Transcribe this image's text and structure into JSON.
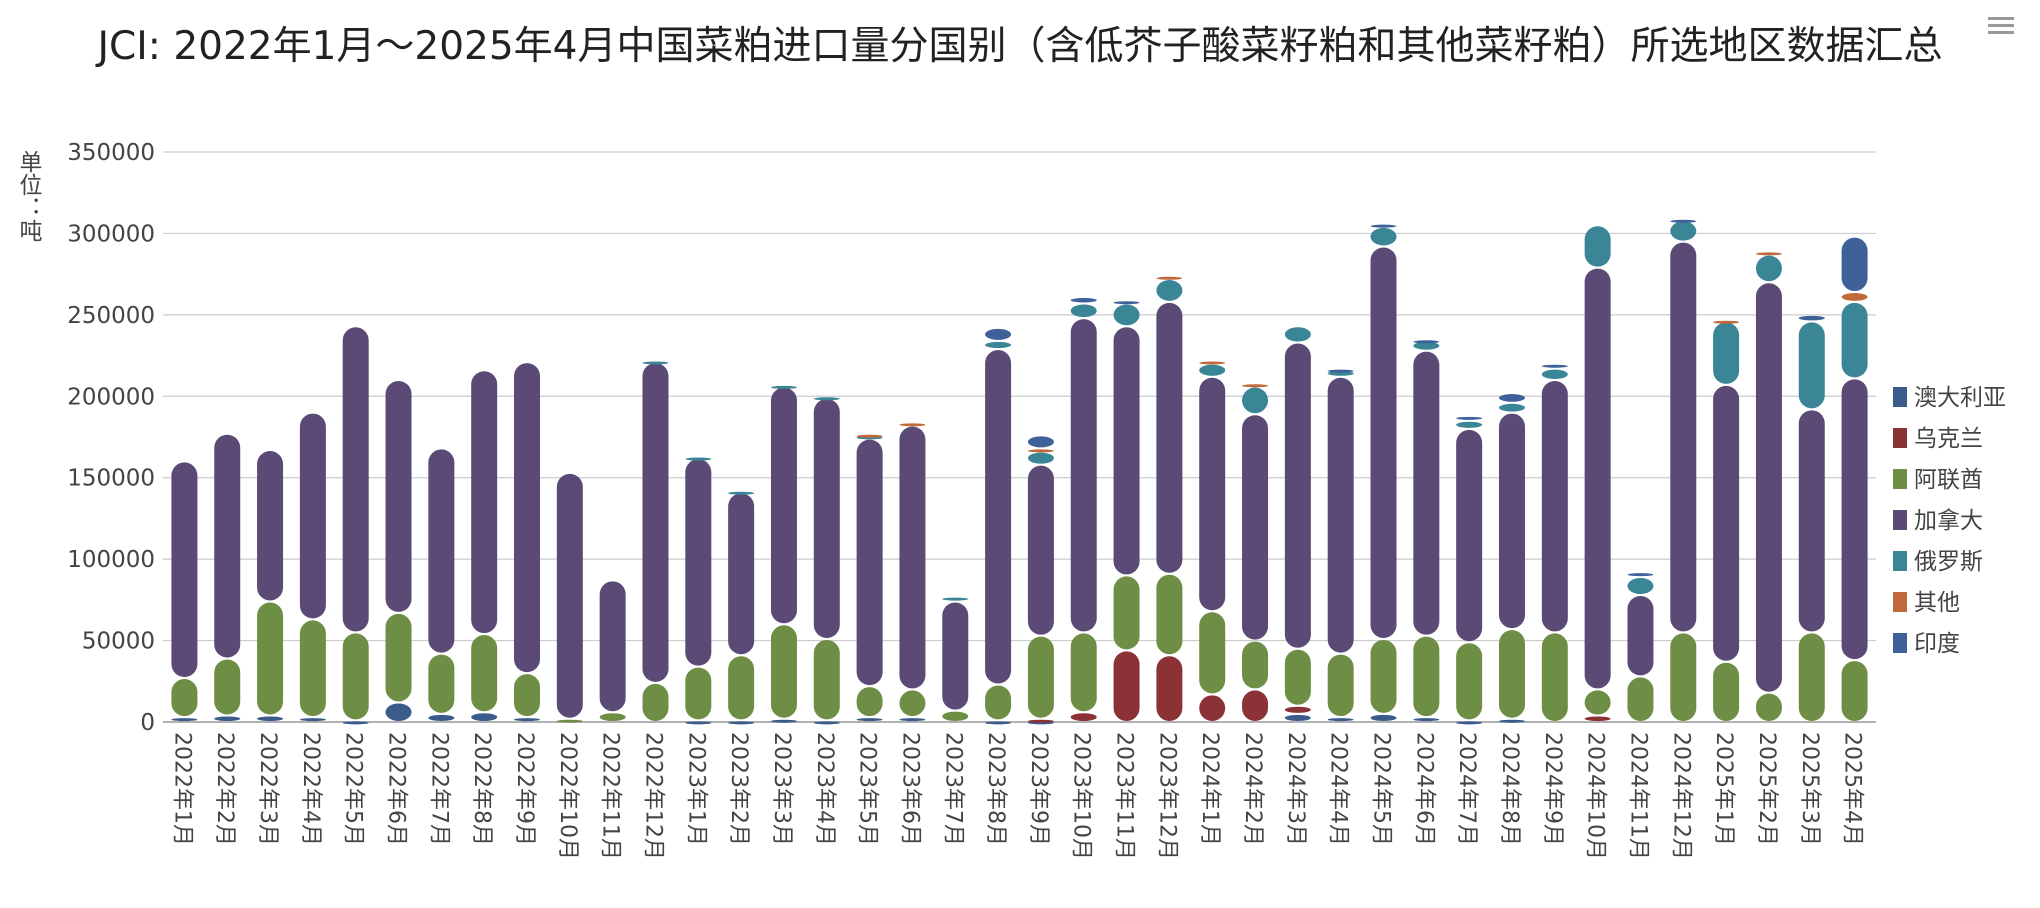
{
  "title": "JCI: 2022年1月～2025年4月中国菜粕进口量分国别（含低芥子酸菜籽粕和其他菜籽粕）所选地区数据汇总",
  "menu_icon": "hamburger-menu-icon",
  "chart_data": {
    "type": "bar",
    "stacked": true,
    "title": "JCI: 2022年1月～2025年4月中国菜粕进口量分国别（含低芥子酸菜籽粕和其他菜籽粕）所选地区数据汇总",
    "ylabel": "单位：吨",
    "ylim": [
      0,
      350000
    ],
    "yticks": [
      0,
      50000,
      100000,
      150000,
      200000,
      250000,
      300000,
      350000
    ],
    "grid": true,
    "legend_position": "right",
    "categories": [
      "2022年1月",
      "2022年2月",
      "2022年3月",
      "2022年4月",
      "2022年5月",
      "2022年6月",
      "2022年7月",
      "2022年8月",
      "2022年9月",
      "2022年10月",
      "2022年11月",
      "2022年12月",
      "2023年1月",
      "2023年2月",
      "2023年3月",
      "2023年4月",
      "2023年5月",
      "2023年6月",
      "2023年7月",
      "2023年8月",
      "2023年9月",
      "2023年10月",
      "2023年11月",
      "2023年12月",
      "2024年1月",
      "2024年2月",
      "2024年3月",
      "2024年4月",
      "2024年5月",
      "2024年6月",
      "2024年7月",
      "2024年8月",
      "2024年9月",
      "2024年10月",
      "2024年11月",
      "2024年12月",
      "2025年1月",
      "2025年2月",
      "2025年3月",
      "2025年4月"
    ],
    "series": [
      {
        "name": "澳大利亚",
        "color": "#3b5b8a",
        "values": [
          3000,
          4000,
          4000,
          3000,
          1000,
          12000,
          5000,
          6000,
          3000,
          0,
          0,
          0,
          1000,
          1000,
          2000,
          1000,
          3000,
          3000,
          0,
          1000,
          1000,
          0,
          0,
          0,
          0,
          0,
          5000,
          3000,
          5000,
          3000,
          1000,
          2000,
          0,
          0,
          0,
          0,
          0,
          0,
          0,
          0
        ]
      },
      {
        "name": "乌克兰",
        "color": "#8b3236",
        "values": [
          0,
          0,
          0,
          0,
          0,
          0,
          0,
          0,
          0,
          0,
          0,
          0,
          0,
          0,
          0,
          0,
          0,
          0,
          0,
          0,
          1000,
          6000,
          44000,
          41000,
          17000,
          20000,
          5000,
          0,
          0,
          0,
          0,
          0,
          0,
          4000,
          0,
          0,
          0,
          0,
          0,
          0
        ]
      },
      {
        "name": "阿联酋",
        "color": "#6f8e45",
        "values": [
          24000,
          35000,
          70000,
          60000,
          54000,
          55000,
          37000,
          48000,
          27000,
          2000,
          6000,
          24000,
          33000,
          40000,
          58000,
          50000,
          19000,
          17000,
          7000,
          22000,
          51000,
          49000,
          46000,
          50000,
          51000,
          30000,
          35000,
          39000,
          46000,
          50000,
          48000,
          55000,
          55000,
          16000,
          28000,
          55000,
          37000,
          18000,
          55000,
          38000
        ]
      },
      {
        "name": "加拿大",
        "color": "#5c4a76",
        "values": [
          133000,
          138000,
          93000,
          127000,
          188000,
          143000,
          126000,
          162000,
          191000,
          151000,
          81000,
          197000,
          128000,
          100000,
          146000,
          148000,
          152000,
          162000,
          67000,
          206000,
          105000,
          193000,
          153000,
          167000,
          144000,
          139000,
          188000,
          170000,
          241000,
          175000,
          131000,
          133000,
          155000,
          259000,
          50000,
          240000,
          170000,
          252000,
          137000,
          173000
        ]
      },
      {
        "name": "俄罗斯",
        "color": "#3a8596",
        "values": [
          0,
          0,
          0,
          0,
          0,
          0,
          0,
          0,
          0,
          0,
          0,
          1000,
          1000,
          1000,
          1000,
          1000,
          2000,
          0,
          3000,
          5000,
          8000,
          9000,
          14000,
          14000,
          8000,
          17000,
          10000,
          4000,
          12000,
          6000,
          5000,
          6000,
          7000,
          26000,
          11000,
          13000,
          39000,
          17000,
          54000,
          47000
        ]
      },
      {
        "name": "其他",
        "color": "#c0693a",
        "values": [
          0,
          0,
          0,
          0,
          0,
          0,
          0,
          0,
          0,
          0,
          0,
          0,
          0,
          0,
          0,
          0,
          1000,
          2000,
          0,
          0,
          2000,
          0,
          0,
          2000,
          2000,
          2000,
          0,
          0,
          0,
          0,
          0,
          0,
          0,
          0,
          0,
          0,
          1000,
          2000,
          0,
          6000
        ]
      },
      {
        "name": "印度",
        "color": "#3e6199",
        "values": [
          0,
          0,
          0,
          0,
          0,
          0,
          0,
          0,
          0,
          0,
          0,
          0,
          0,
          0,
          0,
          0,
          0,
          0,
          0,
          8000,
          8000,
          4000,
          2000,
          0,
          0,
          0,
          0,
          1000,
          2000,
          1000,
          3000,
          6000,
          3000,
          0,
          3000,
          1000,
          0,
          0,
          4000,
          34000
        ]
      }
    ]
  }
}
